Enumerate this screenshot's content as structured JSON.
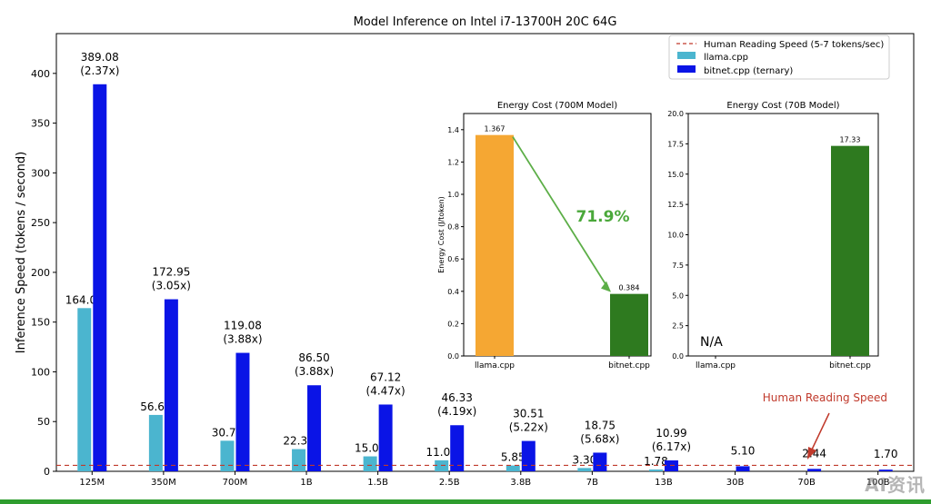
{
  "chart_data": [
    {
      "type": "bar",
      "title": "Model Inference on Intel i7-13700H 20C 64G",
      "xlabel": "",
      "ylabel": "Inference Speed (tokens / second)",
      "ylim": [
        0,
        440
      ],
      "yticks": [
        0,
        50,
        100,
        150,
        200,
        250,
        300,
        350,
        400
      ],
      "categories": [
        "125M",
        "350M",
        "700M",
        "1B",
        "1.5B",
        "2.5B",
        "3.8B",
        "7B",
        "13B",
        "30B",
        "70B",
        "100B"
      ],
      "series": [
        {
          "name": "llama.cpp",
          "color": "#4bb5cf",
          "values": [
            164.04,
            56.67,
            30.73,
            22.31,
            15.02,
            11.07,
            5.85,
            3.3,
            1.78,
            null,
            null,
            null
          ],
          "labels": [
            "164.04",
            "56.67",
            "30.73",
            "22.31",
            "15.02",
            "11.07",
            "5.85",
            "3.30",
            "1.78",
            "",
            "",
            ""
          ]
        },
        {
          "name": "bitnet.cpp (ternary)",
          "color": "#0a14e6",
          "values": [
            389.08,
            172.95,
            119.08,
            86.5,
            67.12,
            46.33,
            30.51,
            18.75,
            10.99,
            5.1,
            2.44,
            1.7
          ],
          "labels": [
            "389.08",
            "172.95",
            "119.08",
            "86.50",
            "67.12",
            "46.33",
            "30.51",
            "18.75",
            "10.99",
            "5.10",
            "2.44",
            "1.70"
          ],
          "speedups": [
            "(2.37x)",
            "(3.05x)",
            "(3.88x)",
            "(3.88x)",
            "(4.47x)",
            "(4.19x)",
            "(5.22x)",
            "(5.68x)",
            "(6.17x)",
            "",
            "",
            ""
          ]
        }
      ],
      "reference_line": {
        "name": "Human Reading Speed (5-7 tokens/sec)",
        "value": 6,
        "color": "#c0392b"
      },
      "annotation": {
        "text": "Human Reading Speed",
        "color": "#c0392b"
      },
      "legend": "top-right",
      "grid": false
    },
    {
      "type": "bar",
      "title": "Energy Cost (700M Model)",
      "ylabel": "Energy Cost (J/token)",
      "ylim": [
        0,
        1.5
      ],
      "yticks": [
        "0.0",
        "0.2",
        "0.4",
        "0.6",
        "0.8",
        "1.0",
        "1.2",
        "1.4"
      ],
      "categories": [
        "llama.cpp",
        "bitnet.cpp"
      ],
      "values": [
        1.367,
        0.384
      ],
      "labels": [
        "1.367",
        "0.384"
      ],
      "colors": [
        "#f5a733",
        "#2e7a1f"
      ],
      "annotation": "71.9%",
      "annotation_color": "#4aa83a"
    },
    {
      "type": "bar",
      "title": "Energy Cost (70B Model)",
      "ylim": [
        0,
        20
      ],
      "yticks": [
        "0.0",
        "2.5",
        "5.0",
        "7.5",
        "10.0",
        "12.5",
        "15.0",
        "17.5",
        "20.0"
      ],
      "categories": [
        "llama.cpp",
        "bitnet.cpp"
      ],
      "values": [
        null,
        17.33
      ],
      "labels": [
        "",
        "17.33"
      ],
      "colors": [
        "#f5a733",
        "#2e7a1f"
      ],
      "missing_label": "N/A"
    }
  ],
  "watermark": "AI资讯"
}
